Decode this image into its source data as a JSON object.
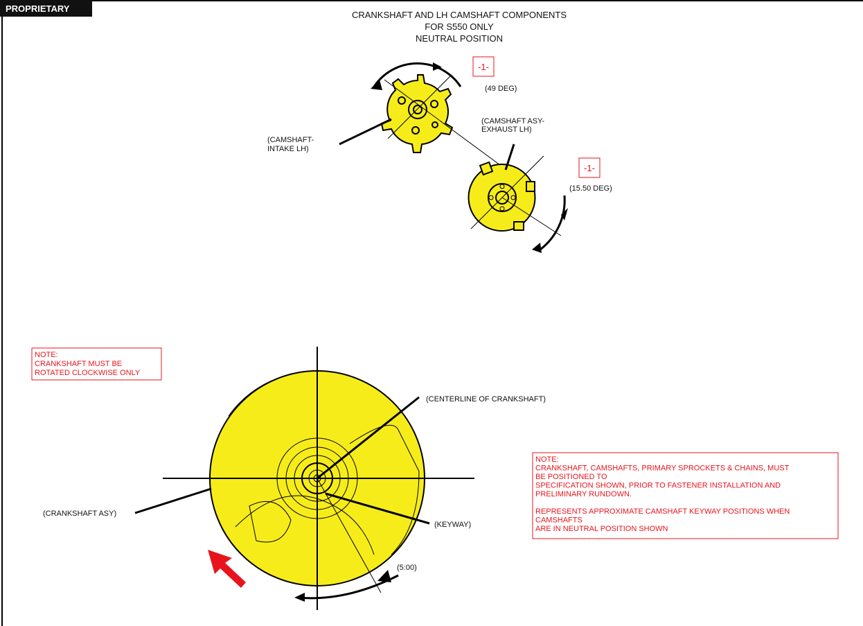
{
  "badge": "PROPRIETARY",
  "title": [
    "CRANKSHAFT AND LH CAMSHAFT COMPONENTS",
    "FOR S550 ONLY",
    "NEUTRAL POSITION"
  ],
  "intake": {
    "callout": "-1-",
    "angle": "(49 DEG)",
    "label": [
      "(CAMSHAFT-",
      "INTAKE LH)"
    ]
  },
  "exhaust": {
    "callout": "-1-",
    "angle": "(15.50 DEG)",
    "label": [
      "(CAMSHAFT ASY-",
      "EXHAUST LH)"
    ]
  },
  "crank": {
    "centerline": "(CENTERLINE OF CRANKSHAFT)",
    "assembly": "(CRANKSHAFT ASY)",
    "keyway": "(KEYWAY)",
    "clock": "(5:00)"
  },
  "note_left": [
    "NOTE:",
    "CRANKSHAFT MUST BE",
    "ROTATED CLOCKWISE ONLY"
  ],
  "note_right": [
    "NOTE:",
    "CRANKSHAFT, CAMSHAFTS, PRIMARY SPROCKETS & CHAINS, MUST",
    "BE POSITIONED TO",
    "SPECIFICATION SHOWN, PRIOR TO FASTENER INSTALLATION AND",
    "PRELIMINARY RUNDOWN.",
    "",
    "REPRESENTS APPROXIMATE CAMSHAFT KEYWAY POSITIONS WHEN",
    "CAMSHAFTS",
    "ARE IN NEUTRAL POSITION SHOWN"
  ]
}
